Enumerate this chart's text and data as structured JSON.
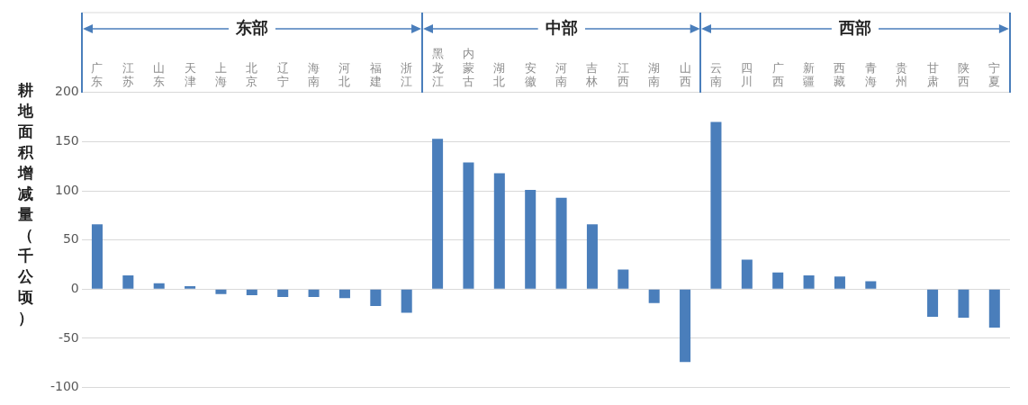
{
  "chart_data": {
    "type": "bar",
    "ylabel": "耕地面积增减量（千公顷）",
    "categories": [
      "广东",
      "江苏",
      "山东",
      "天津",
      "上海",
      "北京",
      "辽宁",
      "海南",
      "河北",
      "福建",
      "浙江",
      "黑龙江",
      "内蒙古",
      "湖北",
      "安徽",
      "河南",
      "吉林",
      "江西",
      "湖南",
      "山西",
      "云南",
      "四川",
      "广西",
      "新疆",
      "西藏",
      "青海",
      "贵州",
      "甘肃",
      "陕西",
      "宁夏"
    ],
    "values": [
      66,
      14,
      6,
      3,
      -5,
      -6,
      -8,
      -8,
      -9,
      -17,
      -24,
      153,
      129,
      118,
      101,
      93,
      66,
      20,
      -14,
      -74,
      170,
      30,
      17,
      14,
      13,
      8,
      0,
      -28,
      -29,
      -39
    ],
    "color": "#4a7ebb",
    "ylim": [
      -100,
      200
    ],
    "yticks": [
      -100,
      -50,
      0,
      50,
      100,
      150,
      200
    ],
    "grid": "y",
    "legend": false,
    "annotations": [
      "东部",
      "中部",
      "西部"
    ]
  }
}
